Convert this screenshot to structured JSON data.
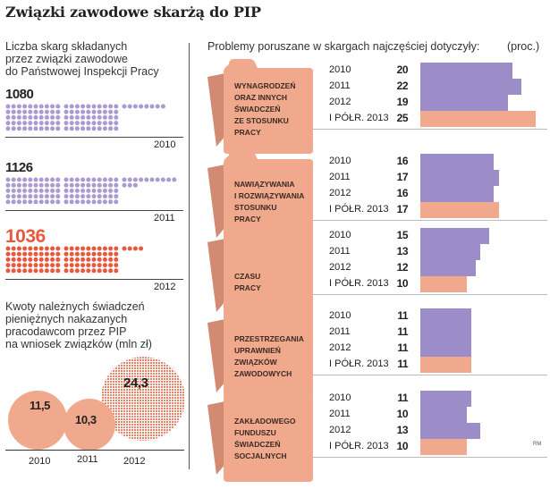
{
  "title": "Związki zawodowe skarżą do PIP",
  "colors": {
    "purple": "#9c8dc8",
    "salmon": "#f1a98e",
    "red": "#e8583d",
    "folder": "#f1a98e",
    "folder_dark": "#d38a72"
  },
  "left": {
    "complaints_heading": [
      "Liczba skarg składanych",
      "przez związki zawodowe",
      "do Państwowej Inspekcji Pracy"
    ],
    "complaints": [
      {
        "year": "2010",
        "value": "1080",
        "count": 1080,
        "color": "#a99bd2"
      },
      {
        "year": "2011",
        "value": "1126",
        "count": 1126,
        "color": "#a99bd2"
      },
      {
        "year": "2012",
        "value": "1036",
        "count": 1036,
        "color": "#e8583d"
      }
    ],
    "amounts_heading": [
      "Kwoty  należnych świadczeń",
      "pieniężnych nakazanych",
      "pracodawcom przez PIP",
      "na wniosek związków (mln zł)"
    ],
    "amounts": [
      {
        "year": "2010",
        "value": "11,5"
      },
      {
        "year": "2011",
        "value": "10,3"
      },
      {
        "year": "2012",
        "value": "24,3"
      }
    ]
  },
  "right": {
    "heading": "Problemy poruszane w skargach najczęściej dotyczyły:",
    "unit": "(proc.)",
    "credit": "RM"
  },
  "chart_data": {
    "type": "bar",
    "orientation": "horizontal",
    "unit": "(proc.)",
    "categories": [
      "2010",
      "2011",
      "2012",
      "I PÓŁR. 2013"
    ],
    "groups": [
      {
        "label": [
          "WYNAGRODZEŃ",
          "ORAZ INNYCH",
          "ŚWIADCZEŃ",
          "ZE STOSUNKU",
          "PRACY"
        ],
        "values": [
          20,
          22,
          19,
          25
        ]
      },
      {
        "label": [
          "NAWIĄZYWANIA",
          "I ROZWIĄZYWANIA",
          "STOSUNKU",
          "PRACY"
        ],
        "values": [
          16,
          17,
          16,
          17
        ]
      },
      {
        "label": [
          "CZASU",
          "PRACY"
        ],
        "values": [
          15,
          13,
          12,
          10
        ]
      },
      {
        "label": [
          "PRZESTRZEGANIA",
          "UPRAWNIEŃ",
          "ZWIĄZKÓW",
          "ZAWODOWYCH"
        ],
        "values": [
          11,
          11,
          11,
          11
        ]
      },
      {
        "label": [
          "ZAKŁADOWEGO",
          "FUNDUSZU",
          "ŚWIADCZEŃ",
          "SOCJALNYCH"
        ],
        "values": [
          11,
          10,
          13,
          10
        ]
      }
    ]
  }
}
